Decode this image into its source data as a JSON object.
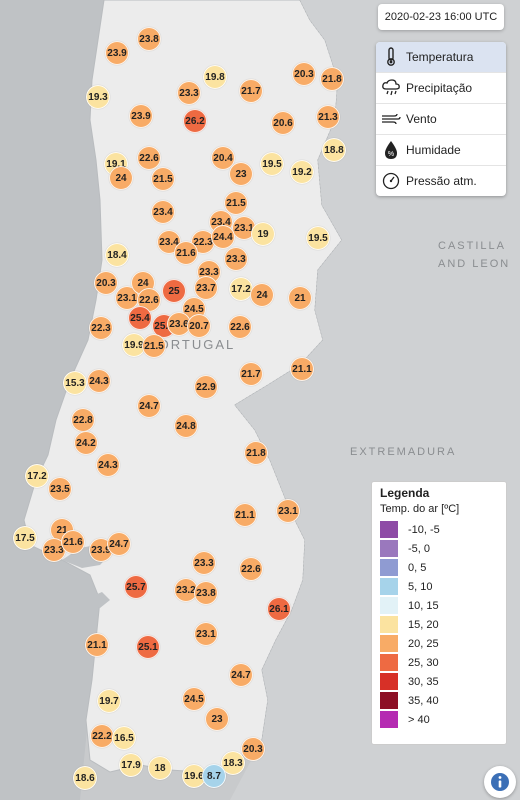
{
  "timestamp": "2020-02-23 16:00 UTC",
  "layers": [
    {
      "label": "Temperatura",
      "icon": "thermometer-icon",
      "active": true
    },
    {
      "label": "Precipitação",
      "icon": "cloud-rain-icon",
      "active": false
    },
    {
      "label": "Vento",
      "icon": "wind-icon",
      "active": false
    },
    {
      "label": "Humidade",
      "icon": "humidity-icon",
      "active": false
    },
    {
      "label": "Pressão atm.",
      "icon": "gauge-icon",
      "active": false
    }
  ],
  "legend": {
    "title": "Legenda",
    "subtitle": "Temp. do ar [ºC]",
    "classes": [
      {
        "label": "-10, -5",
        "color": "#8e4ba6"
      },
      {
        "label": "-5, 0",
        "color": "#9a78bd"
      },
      {
        "label": "0, 5",
        "color": "#8f9bd2"
      },
      {
        "label": "5, 10",
        "color": "#a6d3ea"
      },
      {
        "label": "10, 15",
        "color": "#e2f2f7"
      },
      {
        "label": "15, 20",
        "color": "#fbe3a0"
      },
      {
        "label": "20, 25",
        "color": "#f8ab66"
      },
      {
        "label": "25, 30",
        "color": "#ee6a42"
      },
      {
        "label": "30, 35",
        "color": "#d73027"
      },
      {
        "label": "35, 40",
        "color": "#8d0f25"
      },
      {
        "label": "> 40",
        "color": "#b52bb2"
      }
    ]
  },
  "map_labels": {
    "country": "PORTUGAL",
    "castilla_line1": "CASTILLA",
    "castilla_line2": "AND LEON",
    "extremadura": "EXTREMADURA"
  },
  "stations": [
    "23.8",
    "23.9",
    "19.3",
    "19.8",
    "23.3",
    "21.7",
    "20.3",
    "21.8",
    "23.9",
    "26.2",
    "20.6",
    "21.3",
    "18.8",
    "19.1",
    "24",
    "22.6",
    "21.5",
    "20.4",
    "23",
    "19.5",
    "19.2",
    "21.5",
    "23.4",
    "23.4",
    "23.1",
    "19",
    "19.5",
    "18.4",
    "23.4",
    "22.3",
    "21.6",
    "24.4",
    "23.3",
    "23.3",
    "20.3",
    "23.1",
    "24",
    "22.6",
    "25",
    "23.7",
    "17.2",
    "24",
    "21",
    "24.5",
    "22.3",
    "25.4",
    "25.8",
    "23.6",
    "20.7",
    "22.6",
    "19.9",
    "21.5",
    "21.7",
    "21.1",
    "15.3",
    "24.3",
    "22.9",
    "24.7",
    "22.8",
    "24.8",
    "24.2",
    "21.8",
    "24.3",
    "17.2",
    "23.5",
    "21.1",
    "23.1",
    "21",
    "17.5",
    "23.3",
    "21.6",
    "23.9",
    "24.7",
    "23.3",
    "25.7",
    "22.6",
    "23.2",
    "23.8",
    "26.1",
    "23.1",
    "21.1",
    "25.1",
    "24.7",
    "19.7",
    "24.5",
    "22.2",
    "16.5",
    "23",
    "20.3",
    "18.6",
    "17.9",
    "18",
    "19.6",
    "18.3",
    "8.7"
  ]
}
